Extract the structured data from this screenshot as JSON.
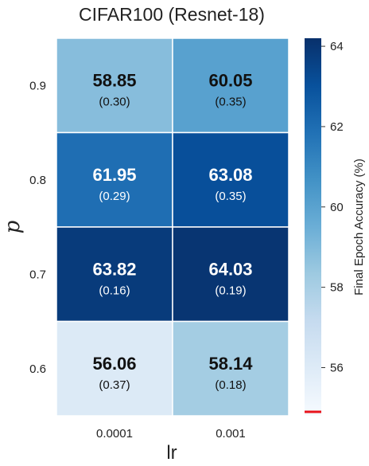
{
  "chart_data": {
    "type": "heatmap",
    "title": "CIFAR100 (Resnet-18)",
    "xlabel": "lr",
    "ylabel": "p",
    "x_categories": [
      "0.0001",
      "0.001"
    ],
    "y_categories": [
      "0.9",
      "0.8",
      "0.7",
      "0.6"
    ],
    "values": [
      [
        58.85,
        60.05
      ],
      [
        61.95,
        63.08
      ],
      [
        63.82,
        64.03
      ],
      [
        56.06,
        58.14
      ]
    ],
    "value_labels": [
      [
        "58.85",
        "60.05"
      ],
      [
        "61.95",
        "63.08"
      ],
      [
        "63.82",
        "64.03"
      ],
      [
        "56.06",
        "58.14"
      ]
    ],
    "std_labels": [
      [
        "(0.30)",
        "(0.35)"
      ],
      [
        "(0.29)",
        "(0.35)"
      ],
      [
        "(0.16)",
        "(0.19)"
      ],
      [
        "(0.37)",
        "(0.18)"
      ]
    ],
    "colorbar": {
      "label": "Final Epoch Accuracy (%)",
      "min": 54.8,
      "max": 64.2,
      "ticks": [
        56,
        58,
        60,
        62,
        64
      ],
      "tick_labels": [
        "56",
        "58",
        "60",
        "62",
        "64"
      ],
      "colormap": "Blues",
      "marker_value": 54.9,
      "marker_color": "#e8141c"
    }
  }
}
